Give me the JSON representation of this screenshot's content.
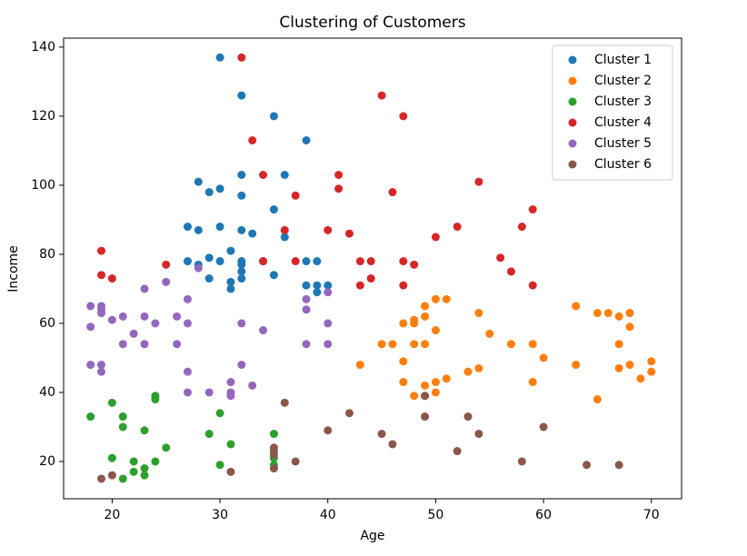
{
  "chart_data": {
    "type": "scatter",
    "title": "Clustering of Customers",
    "x_label": "Age",
    "y_label": "Income",
    "xlim": [
      15.5,
      72.8
    ],
    "ylim": [
      9.2,
      142.6
    ],
    "xticks": [
      20,
      30,
      40,
      50,
      60,
      70
    ],
    "yticks": [
      20,
      40,
      60,
      80,
      100,
      120,
      140
    ],
    "legend": "upper-right",
    "grid": false,
    "series": [
      {
        "name": "Cluster 1",
        "color": "#1f77b4",
        "x": [
          30,
          32,
          35,
          38,
          28,
          29,
          30,
          32,
          32,
          36,
          35,
          27,
          28,
          30,
          32,
          33,
          36,
          31,
          27,
          28,
          29,
          30,
          32,
          32,
          32,
          32,
          29,
          31,
          31,
          35,
          34,
          38,
          39,
          38,
          39,
          39,
          40
        ],
        "values": [
          137,
          126,
          120,
          113,
          101,
          98,
          99,
          103,
          97,
          103,
          93,
          88,
          87,
          88,
          87,
          86,
          85,
          81,
          78,
          77,
          79,
          78,
          78,
          77,
          75,
          73,
          73,
          72,
          70,
          74,
          78,
          78,
          78,
          71,
          71,
          69,
          71
        ]
      },
      {
        "name": "Cluster 2",
        "color": "#ff7f0e",
        "x": [
          43,
          45,
          46,
          47,
          47,
          47,
          48,
          48,
          48,
          48,
          49,
          49,
          49,
          49,
          49,
          50,
          50,
          50,
          50,
          51,
          51,
          53,
          54,
          54,
          55,
          57,
          59,
          59,
          60,
          63,
          63,
          65,
          65,
          66,
          67,
          67,
          67,
          68,
          68,
          68,
          69,
          70,
          70
        ],
        "values": [
          48,
          54,
          54,
          60,
          49,
          43,
          54,
          60,
          61,
          39,
          65,
          62,
          54,
          42,
          39,
          67,
          58,
          43,
          40,
          67,
          44,
          46,
          63,
          47,
          57,
          54,
          54,
          43,
          50,
          65,
          48,
          63,
          38,
          63,
          62,
          54,
          47,
          63,
          59,
          48,
          44,
          49,
          46
        ]
      },
      {
        "name": "Cluster 3",
        "color": "#2ca02c",
        "x": [
          18,
          20,
          21,
          21,
          20,
          21,
          22,
          22,
          23,
          23,
          23,
          24,
          24,
          24,
          25,
          29,
          30,
          30,
          31,
          35,
          35,
          35,
          35
        ],
        "values": [
          33,
          37,
          33,
          30,
          21,
          15,
          20,
          17,
          29,
          18,
          16,
          39,
          38,
          20,
          24,
          28,
          34,
          19,
          25,
          28,
          23,
          21,
          19
        ]
      },
      {
        "name": "Cluster 4",
        "color": "#d62728",
        "x": [
          32,
          33,
          34,
          37,
          36,
          34,
          37,
          40,
          41,
          41,
          42,
          43,
          43,
          44,
          44,
          45,
          46,
          47,
          47,
          47,
          48,
          50,
          52,
          54,
          56,
          57,
          58,
          59,
          59,
          19,
          19,
          20,
          25
        ],
        "values": [
          137,
          113,
          103,
          97,
          87,
          78,
          78,
          87,
          103,
          99,
          86,
          78,
          71,
          78,
          73,
          126,
          98,
          120,
          78,
          71,
          77,
          85,
          88,
          101,
          79,
          75,
          88,
          93,
          71,
          81,
          74,
          73,
          77
        ]
      },
      {
        "name": "Cluster 5",
        "color": "#9467bd",
        "x": [
          18,
          18,
          18,
          19,
          19,
          19,
          19,
          19,
          20,
          21,
          21,
          22,
          23,
          23,
          23,
          24,
          25,
          26,
          26,
          27,
          27,
          27,
          27,
          28,
          29,
          31,
          31,
          31,
          32,
          32,
          33,
          34,
          38,
          38,
          38,
          40,
          40,
          40
        ],
        "values": [
          65,
          59,
          48,
          65,
          64,
          63,
          48,
          46,
          61,
          62,
          54,
          57,
          70,
          62,
          54,
          60,
          72,
          62,
          54,
          67,
          60,
          46,
          40,
          76,
          40,
          43,
          40,
          39,
          60,
          48,
          42,
          58,
          67,
          64,
          54,
          69,
          60,
          54
        ]
      },
      {
        "name": "Cluster 6",
        "color": "#8c564b",
        "x": [
          19,
          20,
          31,
          35,
          35,
          35,
          36,
          37,
          40,
          42,
          45,
          46,
          49,
          49,
          52,
          53,
          54,
          58,
          60,
          64,
          67
        ],
        "values": [
          15,
          16,
          17,
          24,
          22,
          18,
          37,
          20,
          29,
          34,
          28,
          25,
          39,
          33,
          23,
          33,
          28,
          20,
          30,
          19,
          19
        ]
      }
    ]
  }
}
